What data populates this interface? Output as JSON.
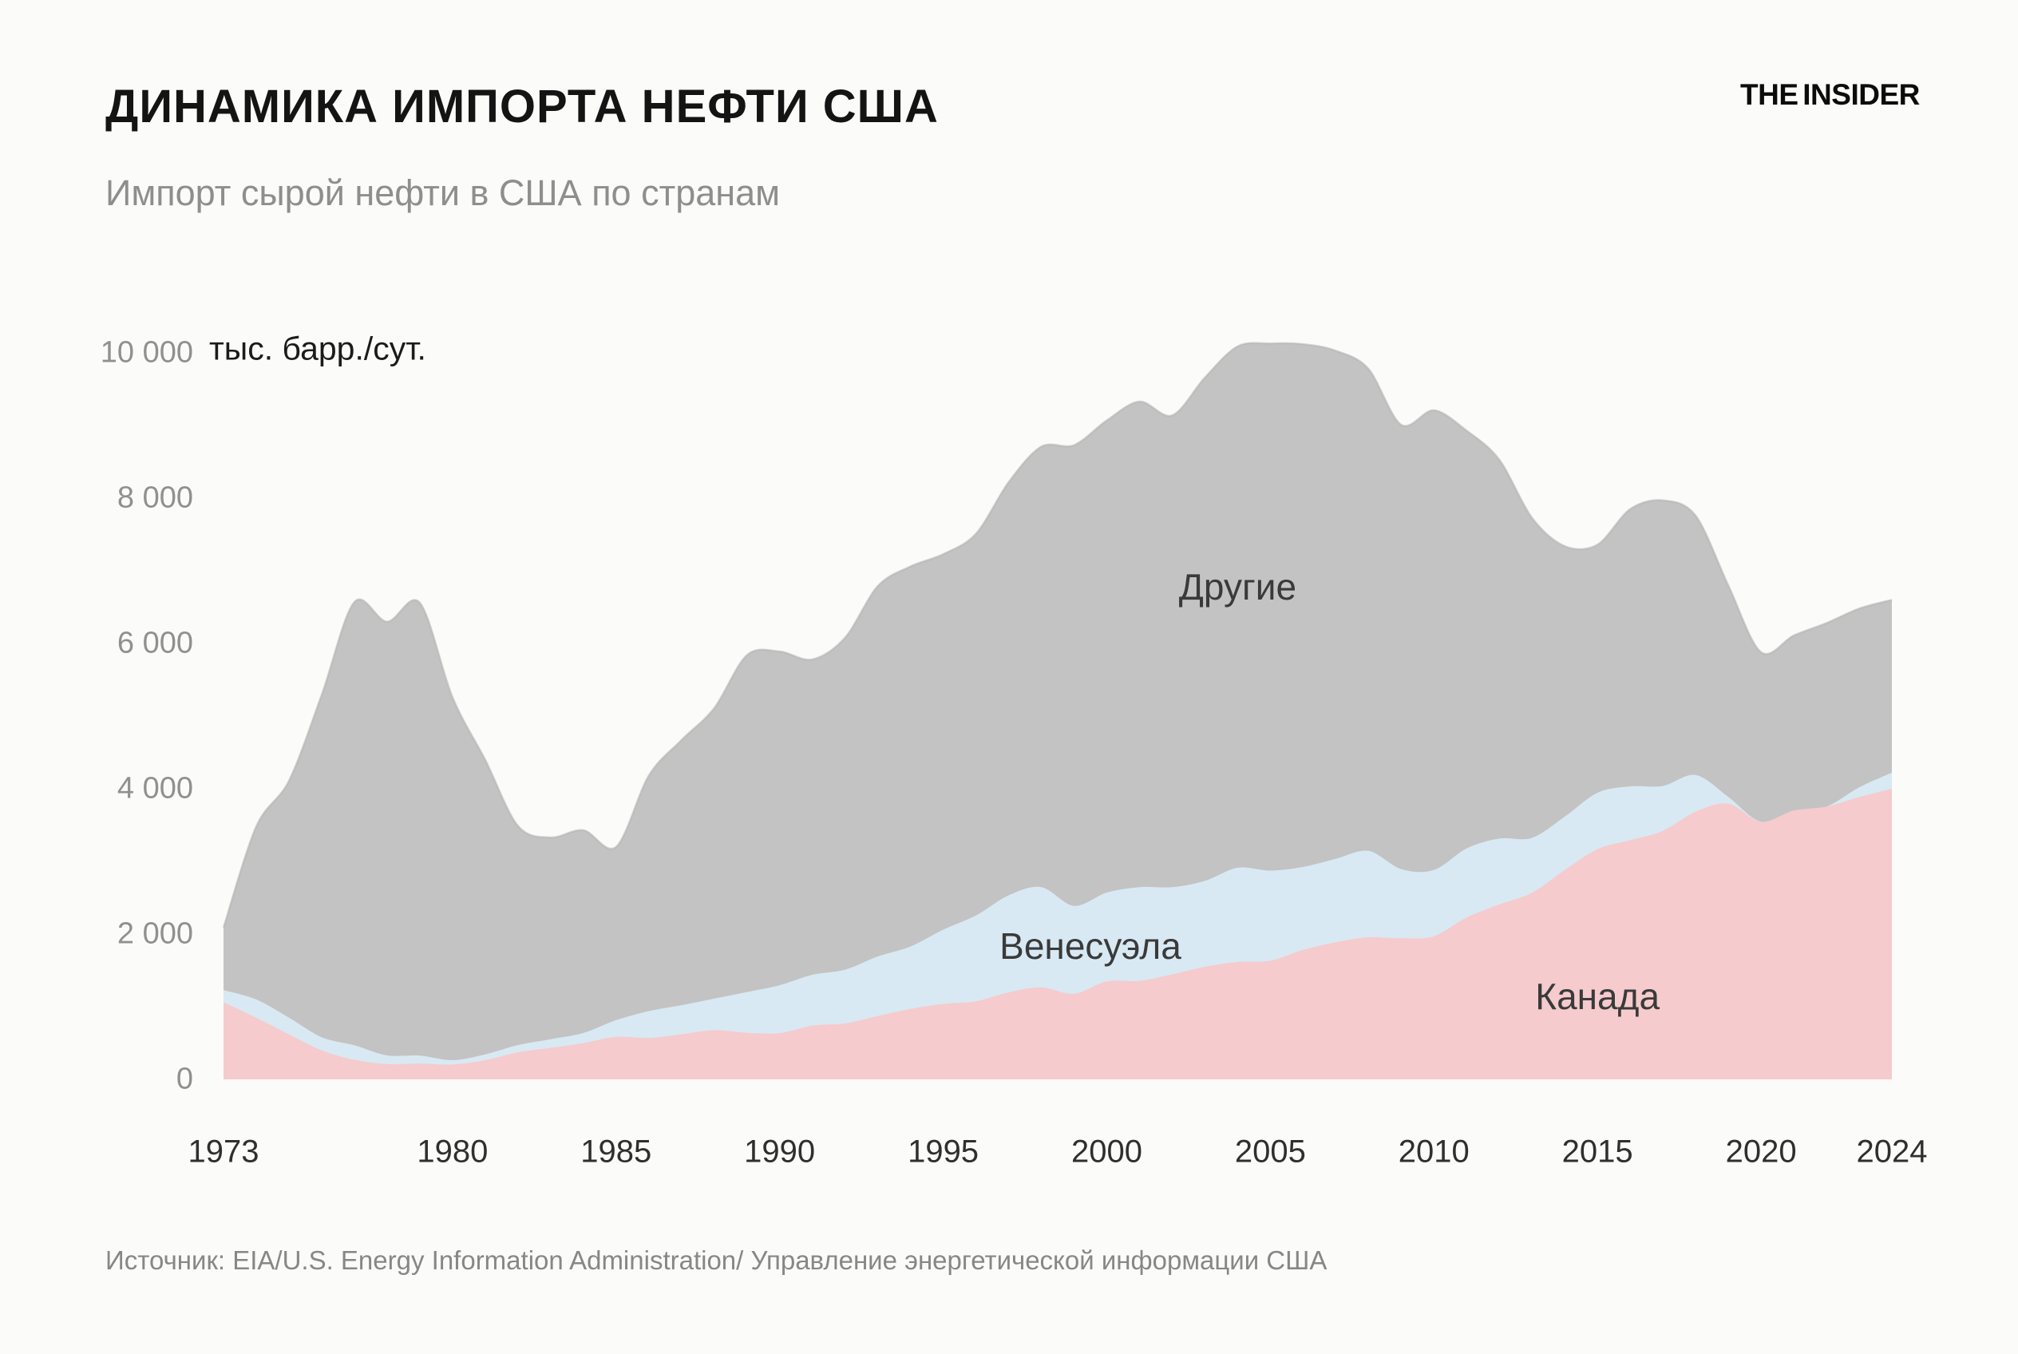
{
  "header": {
    "title": "ДИНАМИКА ИМПОРТА НЕФТИ США",
    "subtitle": "Импорт сырой нефти в США по странам",
    "brand": "THE INSIDER"
  },
  "footer": {
    "source": "Источник: EIA/U.S. Energy Information Administration/ Управление энергетической информации США"
  },
  "chart_data": {
    "type": "area",
    "stacked": true,
    "title": "Импорт сырой нефти в США по странам",
    "unit_label": "тыс. барр./сут.",
    "xlabel": "",
    "ylabel": "тыс. барр./сут.",
    "xlim": [
      1973,
      2024
    ],
    "ylim": [
      0,
      10000
    ],
    "grid": false,
    "legend_position": "labels-inside-areas",
    "x": [
      1973,
      1974,
      1975,
      1976,
      1977,
      1978,
      1979,
      1980,
      1981,
      1982,
      1983,
      1984,
      1985,
      1986,
      1987,
      1988,
      1989,
      1990,
      1991,
      1992,
      1993,
      1994,
      1995,
      1996,
      1997,
      1998,
      1999,
      2000,
      2001,
      2002,
      2003,
      2004,
      2005,
      2006,
      2007,
      2008,
      2009,
      2010,
      2011,
      2012,
      2013,
      2014,
      2015,
      2016,
      2017,
      2018,
      2019,
      2020,
      2021,
      2022,
      2023,
      2024
    ],
    "x_ticks": [
      1973,
      1980,
      1985,
      1990,
      1995,
      2000,
      2005,
      2010,
      2015,
      2020,
      2024
    ],
    "y_ticks": [
      0,
      2000,
      4000,
      6000,
      8000,
      10000
    ],
    "series": [
      {
        "name": "Канада",
        "color": "#f5cbce",
        "values": [
          1060,
          850,
          620,
          400,
          270,
          210,
          218,
          205,
          264,
          372,
          433,
          499,
          585,
          570,
          621,
          677,
          642,
          636,
          740,
          770,
          872,
          969,
          1040,
          1075,
          1198,
          1266,
          1178,
          1348,
          1356,
          1445,
          1549,
          1616,
          1633,
          1782,
          1888,
          1956,
          1943,
          1970,
          2228,
          2408,
          2569,
          2883,
          3169,
          3292,
          3421,
          3683,
          3796,
          3546,
          3700,
          3754,
          3886,
          4000
        ]
      },
      {
        "name": "Венесуэла",
        "color": "#d8e9f3",
        "values": [
          170,
          250,
          230,
          180,
          200,
          120,
          110,
          60,
          80,
          100,
          120,
          140,
          230,
          370,
          400,
          435,
          560,
          660,
          700,
          740,
          820,
          860,
          1020,
          1180,
          1335,
          1380,
          1210,
          1223,
          1290,
          1200,
          1183,
          1297,
          1241,
          1142,
          1148,
          1189,
          951,
          912,
          951,
          906,
          755,
          733,
          776,
          741,
          618,
          506,
          92,
          0,
          0,
          0,
          133,
          222
        ]
      },
      {
        "name": "Другие",
        "color": "#c3c3c3",
        "values": [
          860,
          2380,
          3260,
          4710,
          6100,
          5970,
          6232,
          4995,
          4056,
          3018,
          2777,
          2791,
          2385,
          3240,
          3649,
          3998,
          4638,
          4594,
          4340,
          4570,
          5098,
          5231,
          5170,
          5255,
          5687,
          6064,
          6342,
          6499,
          6684,
          6495,
          6928,
          7177,
          7256,
          7196,
          6994,
          6635,
          6116,
          6328,
          5751,
          5216,
          4406,
          3724,
          3415,
          3817,
          3931,
          3571,
          2912,
          2334,
          2410,
          2526,
          2461,
          2378
        ]
      }
    ],
    "labels": [
      {
        "series": 2,
        "year": 2004,
        "value": 6780
      },
      {
        "series": 1,
        "year": 1999.5,
        "value": 1835
      },
      {
        "series": 0,
        "year": 2015,
        "value": 1140
      }
    ]
  },
  "style": {
    "background": "#fbfbf9",
    "title_color": "#141414",
    "subtitle_color": "#8e8e8e",
    "axis_text_color": "#909090",
    "x_axis_text_color": "#2f2f2f",
    "area_edge_color": "#b0b0b0"
  }
}
